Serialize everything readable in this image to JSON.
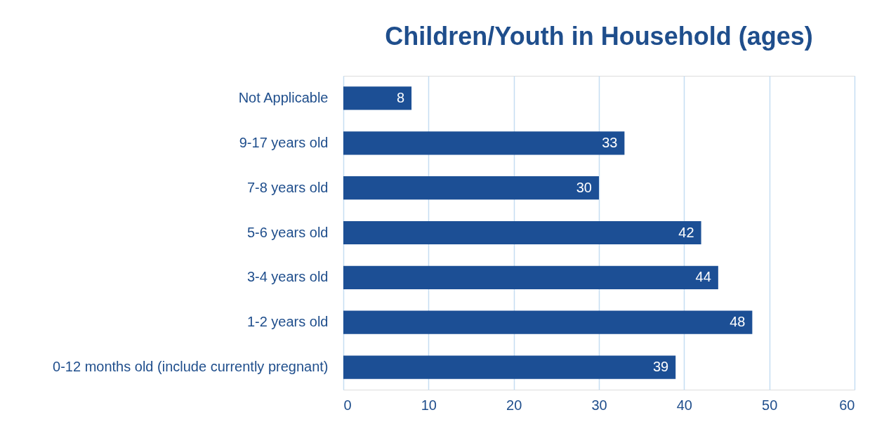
{
  "chart_data": {
    "type": "bar",
    "orientation": "horizontal",
    "title": "Children/Youth in Household (ages)",
    "categories": [
      "Not Applicable",
      "9-17 years old",
      "7-8 years old",
      "5-6 years old",
      "3-4 years old",
      "1-2 years old",
      "0-12 months old (include currently pregnant)"
    ],
    "values": [
      8,
      33,
      30,
      42,
      44,
      48,
      39
    ],
    "color": "#1c4f95",
    "xlim": [
      0,
      60
    ],
    "xticks": [
      0,
      10,
      20,
      30,
      40,
      50,
      60
    ],
    "grid": "x",
    "data_labels": true
  }
}
